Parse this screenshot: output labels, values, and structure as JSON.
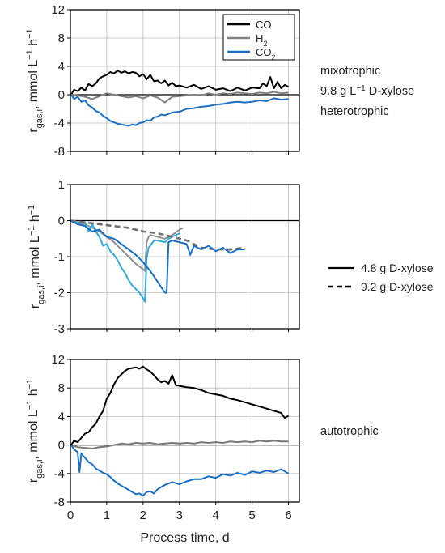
{
  "chart_data": [
    {
      "type": "line",
      "panel": "top",
      "ylabel": "r_gas,i, mmol L−1 h−1",
      "xlabel": "",
      "xlim": [
        0,
        6.3
      ],
      "ylim": [
        -8,
        12
      ],
      "yticks": [
        -8,
        -4,
        0,
        4,
        8,
        12
      ],
      "xticks": [
        0,
        1,
        2,
        3,
        4,
        5,
        6
      ],
      "grid": true,
      "zero_line": true,
      "legend": {
        "position": "top-right",
        "entries": [
          {
            "label": "CO",
            "color": "#000000"
          },
          {
            "label": "H",
            "sub": "2",
            "color": "#808080"
          },
          {
            "label": "CO",
            "sub": "2",
            "color": "#1a6fc2"
          }
        ]
      },
      "annotations": {
        "line1": "mixotrophic",
        "line2_pre": "9.8 g L",
        "line2_sup": "−1",
        "line2_post": " D-xylose",
        "line3": "heterotrophic"
      },
      "series": [
        {
          "name": "CO",
          "color": "#000000",
          "x": [
            0.02,
            0.1,
            0.2,
            0.3,
            0.4,
            0.5,
            0.6,
            0.7,
            0.8,
            0.9,
            1.0,
            1.1,
            1.2,
            1.3,
            1.4,
            1.5,
            1.6,
            1.7,
            1.8,
            1.9,
            2.0,
            2.1,
            2.2,
            2.3,
            2.4,
            2.5,
            2.6,
            2.7,
            2.8,
            2.9,
            3.0,
            3.2,
            3.4,
            3.6,
            3.8,
            4.0,
            4.2,
            4.4,
            4.6,
            4.8,
            5.0,
            5.2,
            5.3,
            5.4,
            5.5,
            5.6,
            5.7,
            5.8,
            5.9,
            6.0
          ],
          "y": [
            0.0,
            0.7,
            0.5,
            1.0,
            0.6,
            1.5,
            1.2,
            1.6,
            2.3,
            2.6,
            2.8,
            3.2,
            3.0,
            3.4,
            3.1,
            3.3,
            3.0,
            3.2,
            3.1,
            2.6,
            2.9,
            2.2,
            2.8,
            1.9,
            2.0,
            1.6,
            2.0,
            1.3,
            1.7,
            1.2,
            1.3,
            1.0,
            1.4,
            0.8,
            1.2,
            0.7,
            0.9,
            0.5,
            1.0,
            0.6,
            1.0,
            0.9,
            1.6,
            1.2,
            2.5,
            0.9,
            1.8,
            0.9,
            1.4,
            1.1
          ]
        },
        {
          "name": "H2",
          "color": "#808080",
          "x": [
            0.02,
            0.2,
            0.4,
            0.6,
            0.8,
            1.0,
            1.2,
            1.4,
            1.6,
            1.8,
            2.0,
            2.2,
            2.4,
            2.6,
            2.8,
            3.0,
            3.2,
            3.4,
            3.6,
            3.8,
            4.0,
            4.2,
            4.4,
            4.6,
            4.8,
            5.0,
            5.2,
            5.4,
            5.6,
            5.8,
            6.0
          ],
          "y": [
            0.0,
            -0.1,
            -0.3,
            -0.6,
            -0.2,
            0.2,
            0.0,
            -0.2,
            -0.4,
            -0.2,
            -0.5,
            -0.1,
            -0.4,
            -1.1,
            -0.3,
            -0.2,
            -0.1,
            0.0,
            -0.1,
            0.2,
            0.0,
            0.2,
            0.1,
            0.3,
            0.2,
            0.1,
            0.3,
            0.2,
            0.4,
            0.2,
            0.3
          ]
        },
        {
          "name": "CO2",
          "color": "#1a6fc2",
          "x": [
            0.02,
            0.1,
            0.2,
            0.3,
            0.4,
            0.5,
            0.6,
            0.7,
            0.8,
            0.9,
            1.0,
            1.1,
            1.2,
            1.3,
            1.4,
            1.5,
            1.6,
            1.7,
            1.8,
            1.9,
            2.0,
            2.1,
            2.2,
            2.3,
            2.4,
            2.5,
            2.6,
            2.8,
            3.0,
            3.2,
            3.4,
            3.6,
            3.8,
            4.0,
            4.2,
            4.4,
            4.6,
            4.8,
            5.0,
            5.2,
            5.4,
            5.6,
            5.8,
            6.0
          ],
          "y": [
            0.0,
            -0.6,
            -0.3,
            -1.0,
            -0.8,
            -1.5,
            -1.8,
            -2.3,
            -2.5,
            -3.0,
            -3.3,
            -3.7,
            -3.9,
            -4.1,
            -4.2,
            -4.3,
            -4.4,
            -4.2,
            -4.3,
            -4.0,
            -3.9,
            -3.6,
            -3.7,
            -3.2,
            -3.1,
            -2.8,
            -2.9,
            -2.5,
            -2.4,
            -2.0,
            -1.9,
            -1.7,
            -1.6,
            -1.4,
            -1.3,
            -1.1,
            -1.0,
            -1.1,
            -1.0,
            -0.8,
            -0.9,
            -0.5,
            -0.7,
            -0.6
          ]
        }
      ]
    },
    {
      "type": "line",
      "panel": "middle",
      "ylabel": "r_gas,i, mmol L−1 h−1",
      "xlabel": "",
      "xlim": [
        0,
        6.3
      ],
      "ylim": [
        -3,
        1
      ],
      "yticks": [
        -3,
        -2,
        -1,
        0,
        1
      ],
      "xticks": [
        0,
        1,
        2,
        3,
        4,
        5,
        6
      ],
      "grid": true,
      "zero_line": true,
      "legend": {
        "position": "right",
        "entries": [
          {
            "label": "4.8 g D-xylose",
            "style": "solid"
          },
          {
            "label": "9.2 g D-xylose",
            "style": "dashed"
          }
        ]
      },
      "series": [
        {
          "name": "H2 4.8 g",
          "color": "#909090",
          "style": "solid",
          "x": [
            0.0,
            0.2,
            0.4,
            0.6,
            0.8,
            1.0,
            1.2,
            1.4,
            1.6,
            1.8,
            2.0,
            2.05,
            2.1,
            2.15,
            2.2,
            2.4,
            2.6,
            2.8,
            3.0,
            3.1
          ],
          "y": [
            0.0,
            -0.1,
            -0.1,
            -0.2,
            -0.3,
            -0.45,
            -0.6,
            -0.8,
            -1.0,
            -1.2,
            -1.35,
            -1.4,
            -0.6,
            -0.45,
            -0.4,
            -0.45,
            -0.5,
            -0.4,
            -0.25,
            -0.2
          ]
        },
        {
          "name": "CO2 4.8 g",
          "color": "#33aadd",
          "style": "solid",
          "x": [
            0.0,
            0.2,
            0.4,
            0.5,
            0.6,
            0.7,
            0.8,
            0.9,
            1.0,
            1.1,
            1.2,
            1.3,
            1.4,
            1.5,
            1.6,
            1.7,
            1.8,
            1.9,
            2.0,
            2.05,
            2.1,
            2.15,
            2.2,
            2.3,
            2.4,
            2.6,
            2.7,
            2.8,
            2.9,
            3.0
          ],
          "y": [
            0.0,
            -0.05,
            -0.05,
            -0.3,
            -0.1,
            -0.3,
            -0.45,
            -0.7,
            -0.65,
            -0.85,
            -0.95,
            -1.1,
            -1.3,
            -1.45,
            -1.65,
            -1.8,
            -1.9,
            -2.0,
            -2.15,
            -2.25,
            -1.05,
            -0.75,
            -0.7,
            -0.55,
            -0.55,
            -0.6,
            -0.5,
            -0.45,
            -0.4,
            -0.35
          ]
        },
        {
          "name": "H2 9.2 g",
          "color": "#707070",
          "style": "dashed",
          "x": [
            0.0,
            0.4,
            0.8,
            1.2,
            1.6,
            2.0,
            2.4,
            2.8,
            3.2,
            3.6,
            4.0,
            4.4,
            4.8
          ],
          "y": [
            0.0,
            -0.05,
            -0.1,
            -0.15,
            -0.2,
            -0.3,
            -0.35,
            -0.45,
            -0.55,
            -0.75,
            -0.8,
            -0.8,
            -0.75
          ]
        },
        {
          "name": "CO2 9.2 g",
          "color": "#1a6fc2",
          "style": "solid",
          "x": [
            0.0,
            0.2,
            0.4,
            0.6,
            0.8,
            1.0,
            1.2,
            1.4,
            1.6,
            1.8,
            2.0,
            2.2,
            2.4,
            2.5,
            2.6,
            2.65,
            2.7,
            2.8,
            3.0,
            3.2,
            3.3,
            3.4,
            3.6,
            3.8,
            4.0,
            4.2,
            4.4,
            4.6,
            4.8
          ],
          "y": [
            0.0,
            -0.1,
            -0.15,
            -0.3,
            -0.25,
            -0.45,
            -0.5,
            -0.65,
            -0.8,
            -0.95,
            -1.15,
            -1.4,
            -1.7,
            -1.85,
            -2.0,
            -2.0,
            -0.6,
            -0.55,
            -0.6,
            -0.65,
            -0.95,
            -0.7,
            -0.8,
            -0.7,
            -0.85,
            -0.75,
            -0.9,
            -0.8,
            -0.8
          ]
        }
      ]
    },
    {
      "type": "line",
      "panel": "bottom",
      "ylabel": "r_gas,i, mmol L−1 h−1",
      "xlabel": "Process time, d",
      "xlim": [
        0,
        6.3
      ],
      "ylim": [
        -8,
        12
      ],
      "yticks": [
        -8,
        -4,
        0,
        4,
        8,
        12
      ],
      "xticks": [
        0,
        1,
        2,
        3,
        4,
        5,
        6
      ],
      "grid": true,
      "zero_line": true,
      "annotations": {
        "line1": "autotrophic"
      },
      "series": [
        {
          "name": "CO",
          "color": "#000000",
          "x": [
            0.02,
            0.1,
            0.2,
            0.3,
            0.4,
            0.5,
            0.6,
            0.7,
            0.8,
            0.9,
            1.0,
            1.1,
            1.2,
            1.3,
            1.4,
            1.5,
            1.6,
            1.7,
            1.8,
            1.9,
            2.0,
            2.1,
            2.2,
            2.3,
            2.4,
            2.5,
            2.6,
            2.7,
            2.8,
            2.9,
            3.0,
            3.2,
            3.4,
            3.6,
            3.8,
            4.0,
            4.2,
            4.4,
            4.6,
            4.8,
            5.0,
            5.2,
            5.4,
            5.6,
            5.8,
            5.9,
            6.0
          ],
          "y": [
            0.0,
            0.6,
            0.4,
            1.0,
            1.6,
            1.8,
            2.5,
            3.0,
            4.0,
            4.8,
            6.5,
            7.3,
            8.5,
            9.4,
            9.9,
            10.4,
            10.7,
            10.8,
            10.9,
            10.7,
            11.0,
            10.6,
            10.3,
            9.8,
            9.2,
            8.8,
            9.0,
            8.6,
            9.8,
            8.4,
            8.3,
            8.1,
            8.0,
            7.7,
            7.3,
            7.1,
            6.9,
            6.5,
            6.3,
            6.0,
            5.7,
            5.4,
            5.1,
            4.8,
            4.5,
            3.8,
            4.1
          ]
        },
        {
          "name": "H2",
          "color": "#777777",
          "x": [
            0.02,
            0.2,
            0.4,
            0.6,
            0.8,
            1.0,
            1.2,
            1.4,
            1.6,
            1.8,
            2.0,
            2.2,
            2.4,
            2.6,
            2.8,
            3.0,
            3.2,
            3.4,
            3.6,
            3.8,
            4.0,
            4.2,
            4.4,
            4.6,
            4.8,
            5.0,
            5.2,
            5.4,
            5.6,
            5.8,
            6.0
          ],
          "y": [
            0.0,
            -0.3,
            -0.4,
            -0.5,
            -0.3,
            -0.2,
            0.0,
            0.2,
            0.1,
            0.3,
            0.2,
            0.3,
            0.1,
            0.2,
            0.3,
            0.2,
            0.3,
            0.2,
            0.4,
            0.3,
            0.4,
            0.3,
            0.5,
            0.4,
            0.5,
            0.4,
            0.6,
            0.5,
            0.6,
            0.5,
            0.5
          ]
        },
        {
          "name": "CO2",
          "color": "#1a6fc2",
          "x": [
            0.02,
            0.1,
            0.2,
            0.25,
            0.3,
            0.4,
            0.5,
            0.6,
            0.7,
            0.8,
            0.9,
            1.0,
            1.1,
            1.2,
            1.3,
            1.4,
            1.5,
            1.6,
            1.7,
            1.8,
            1.9,
            2.0,
            2.1,
            2.2,
            2.3,
            2.4,
            2.5,
            2.6,
            2.8,
            3.0,
            3.2,
            3.4,
            3.6,
            3.8,
            4.0,
            4.2,
            4.4,
            4.6,
            4.8,
            5.0,
            5.2,
            5.4,
            5.6,
            5.8,
            6.0
          ],
          "y": [
            0.0,
            -0.6,
            -1.0,
            -3.8,
            -1.2,
            -1.8,
            -2.4,
            -2.7,
            -3.3,
            -3.6,
            -3.9,
            -4.1,
            -4.5,
            -5.0,
            -5.4,
            -5.7,
            -6.0,
            -6.3,
            -6.6,
            -6.9,
            -6.8,
            -7.1,
            -6.6,
            -6.5,
            -6.8,
            -6.2,
            -5.9,
            -5.6,
            -5.2,
            -5.5,
            -5.1,
            -4.8,
            -4.8,
            -4.4,
            -4.6,
            -4.1,
            -4.3,
            -3.9,
            -4.2,
            -3.7,
            -3.9,
            -3.6,
            -3.8,
            -3.4,
            -4.0
          ]
        }
      ]
    }
  ]
}
